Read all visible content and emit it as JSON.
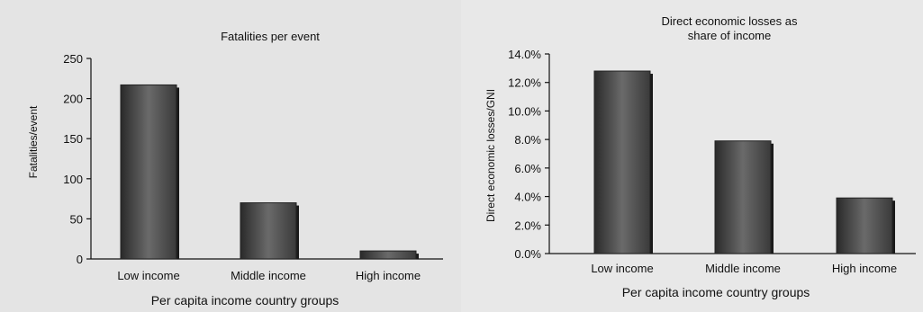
{
  "chart_data": [
    {
      "type": "bar",
      "title": "Fatalities per event",
      "xlabel": "Per capita income country groups",
      "ylabel": "Fatalities/event",
      "categories": [
        "Low income",
        "Middle income",
        "High income"
      ],
      "values": [
        217,
        70,
        10
      ],
      "ylim": [
        0,
        250
      ],
      "yticks": [
        0,
        50,
        100,
        150,
        200,
        250
      ],
      "ytick_labels": [
        "0",
        "50",
        "100",
        "150",
        "200",
        "250"
      ],
      "grid": false,
      "bar_color": "#555555"
    },
    {
      "type": "bar",
      "title_lines": [
        "Direct economic losses as",
        "share of income"
      ],
      "xlabel": "Per capita income country groups",
      "ylabel": "Direct economic losses/GNI",
      "categories": [
        "Low income",
        "Middle income",
        "High income"
      ],
      "values": [
        12.8,
        7.9,
        3.9
      ],
      "unit": "%",
      "ylim": [
        0,
        14
      ],
      "yticks": [
        0,
        2,
        4,
        6,
        8,
        10,
        12,
        14
      ],
      "ytick_labels": [
        "0.0%",
        "2.0%",
        "4.0%",
        "6.0%",
        "8.0%",
        "10.0%",
        "12.0%",
        "14.0%"
      ],
      "grid": false,
      "bar_color": "#555555"
    }
  ]
}
